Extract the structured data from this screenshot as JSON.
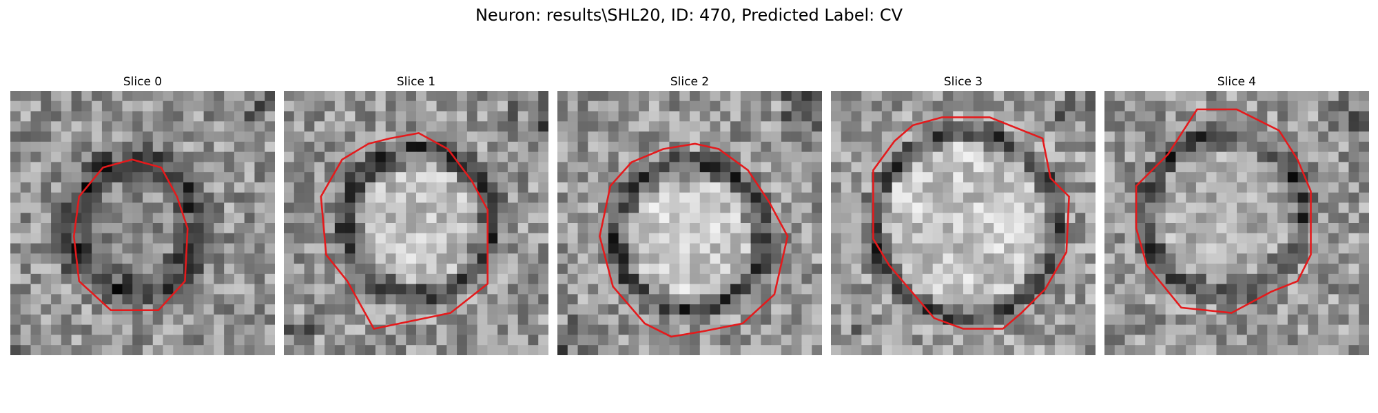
{
  "figure": {
    "title": "Neuron: results\\SHL20, ID: 470, Predicted Label: CV"
  },
  "panels": [
    {
      "title": "Slice 0"
    },
    {
      "title": "Slice 1"
    },
    {
      "title": "Slice 2"
    },
    {
      "title": "Slice 3"
    },
    {
      "title": "Slice 4"
    }
  ],
  "colors": {
    "contour": "#e41a1c",
    "background": "#ffffff"
  }
}
